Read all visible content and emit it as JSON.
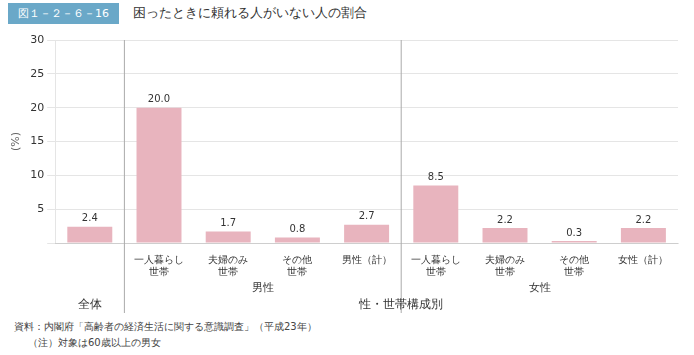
{
  "chart_data": {
    "type": "bar",
    "title": "困ったときに頼れる人がいない人の割合",
    "subtitle": "図１－２－６－16",
    "ylabel": "(%)",
    "categories": [
      null,
      [
        "一人暮らし",
        "世帯"
      ],
      [
        "夫婦のみ",
        "世帯"
      ],
      [
        "その他",
        "世帯"
      ],
      "男性（計）",
      [
        "一人暮らし",
        "世帯"
      ],
      [
        "夫婦のみ",
        "世帯"
      ],
      [
        "その他",
        "世帯"
      ],
      "女性（計）"
    ],
    "values": [
      2.4,
      20.0,
      1.7,
      0.8,
      2.7,
      8.5,
      2.2,
      0.3,
      2.2
    ],
    "value_labels": [
      "2.4",
      "20.0",
      "1.7",
      "0.8",
      "2.7",
      "8.5",
      "2.2",
      "0.3",
      "2.2"
    ],
    "data_labels": true,
    "color": "#e8b4be",
    "ylim": [
      0,
      30
    ],
    "yticks": [
      {
        "value": 0,
        "label": null
      },
      5,
      10,
      15,
      20,
      25,
      30
    ],
    "grid": true,
    "group_rows": [
      [
        {
          "label": null,
          "count": 1
        },
        {
          "label": "男性",
          "count": 4
        },
        {
          "label": "女性",
          "count": 4
        }
      ],
      [
        {
          "label": "全体",
          "count": 1
        },
        {
          "label": "性・世帯構成別",
          "count": 8
        }
      ]
    ],
    "annotations": [
      "資料：内閣府「高齢者の経済生活に関する意識調査」（平成23年）",
      "（注）対象は60歳以上の男女"
    ]
  }
}
